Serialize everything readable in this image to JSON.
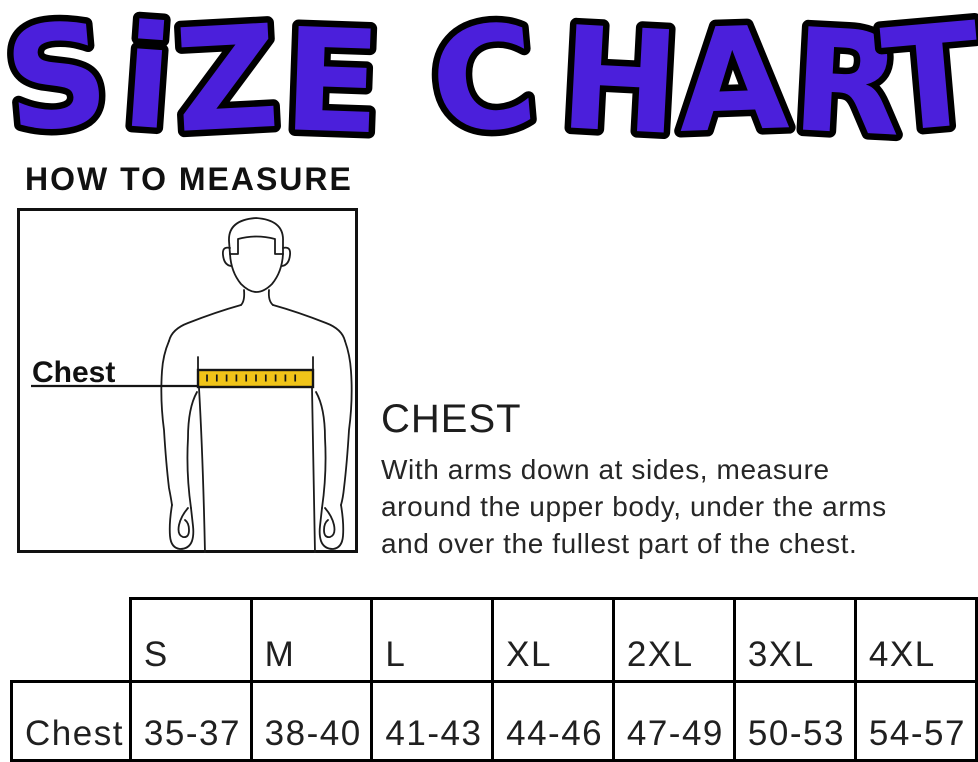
{
  "title": {
    "text": "SiZE CHART"
  },
  "colors": {
    "title_purple": "#4B1FDB",
    "outline_black": "#000000",
    "tape_yellow": "#F0C419",
    "ink": "#1A1A1A"
  },
  "how_to_measure_heading": "HOW TO MEASURE",
  "diagram": {
    "chest_label": "Chest"
  },
  "chest_section": {
    "heading": "CHEST",
    "line1": "With arms down at sides, measure",
    "line2": "around the upper body, under the arms",
    "line3": "and over the fullest part of the chest."
  },
  "chart_data": {
    "type": "table",
    "title": "SiZE CHART",
    "columns": [
      "S",
      "M",
      "L",
      "XL",
      "2XL",
      "3XL",
      "4XL"
    ],
    "rows": [
      {
        "label": "Chest",
        "values": [
          "35-37",
          "38-40",
          "41-43",
          "44-46",
          "47-49",
          "50-53",
          "54-57"
        ]
      }
    ]
  }
}
